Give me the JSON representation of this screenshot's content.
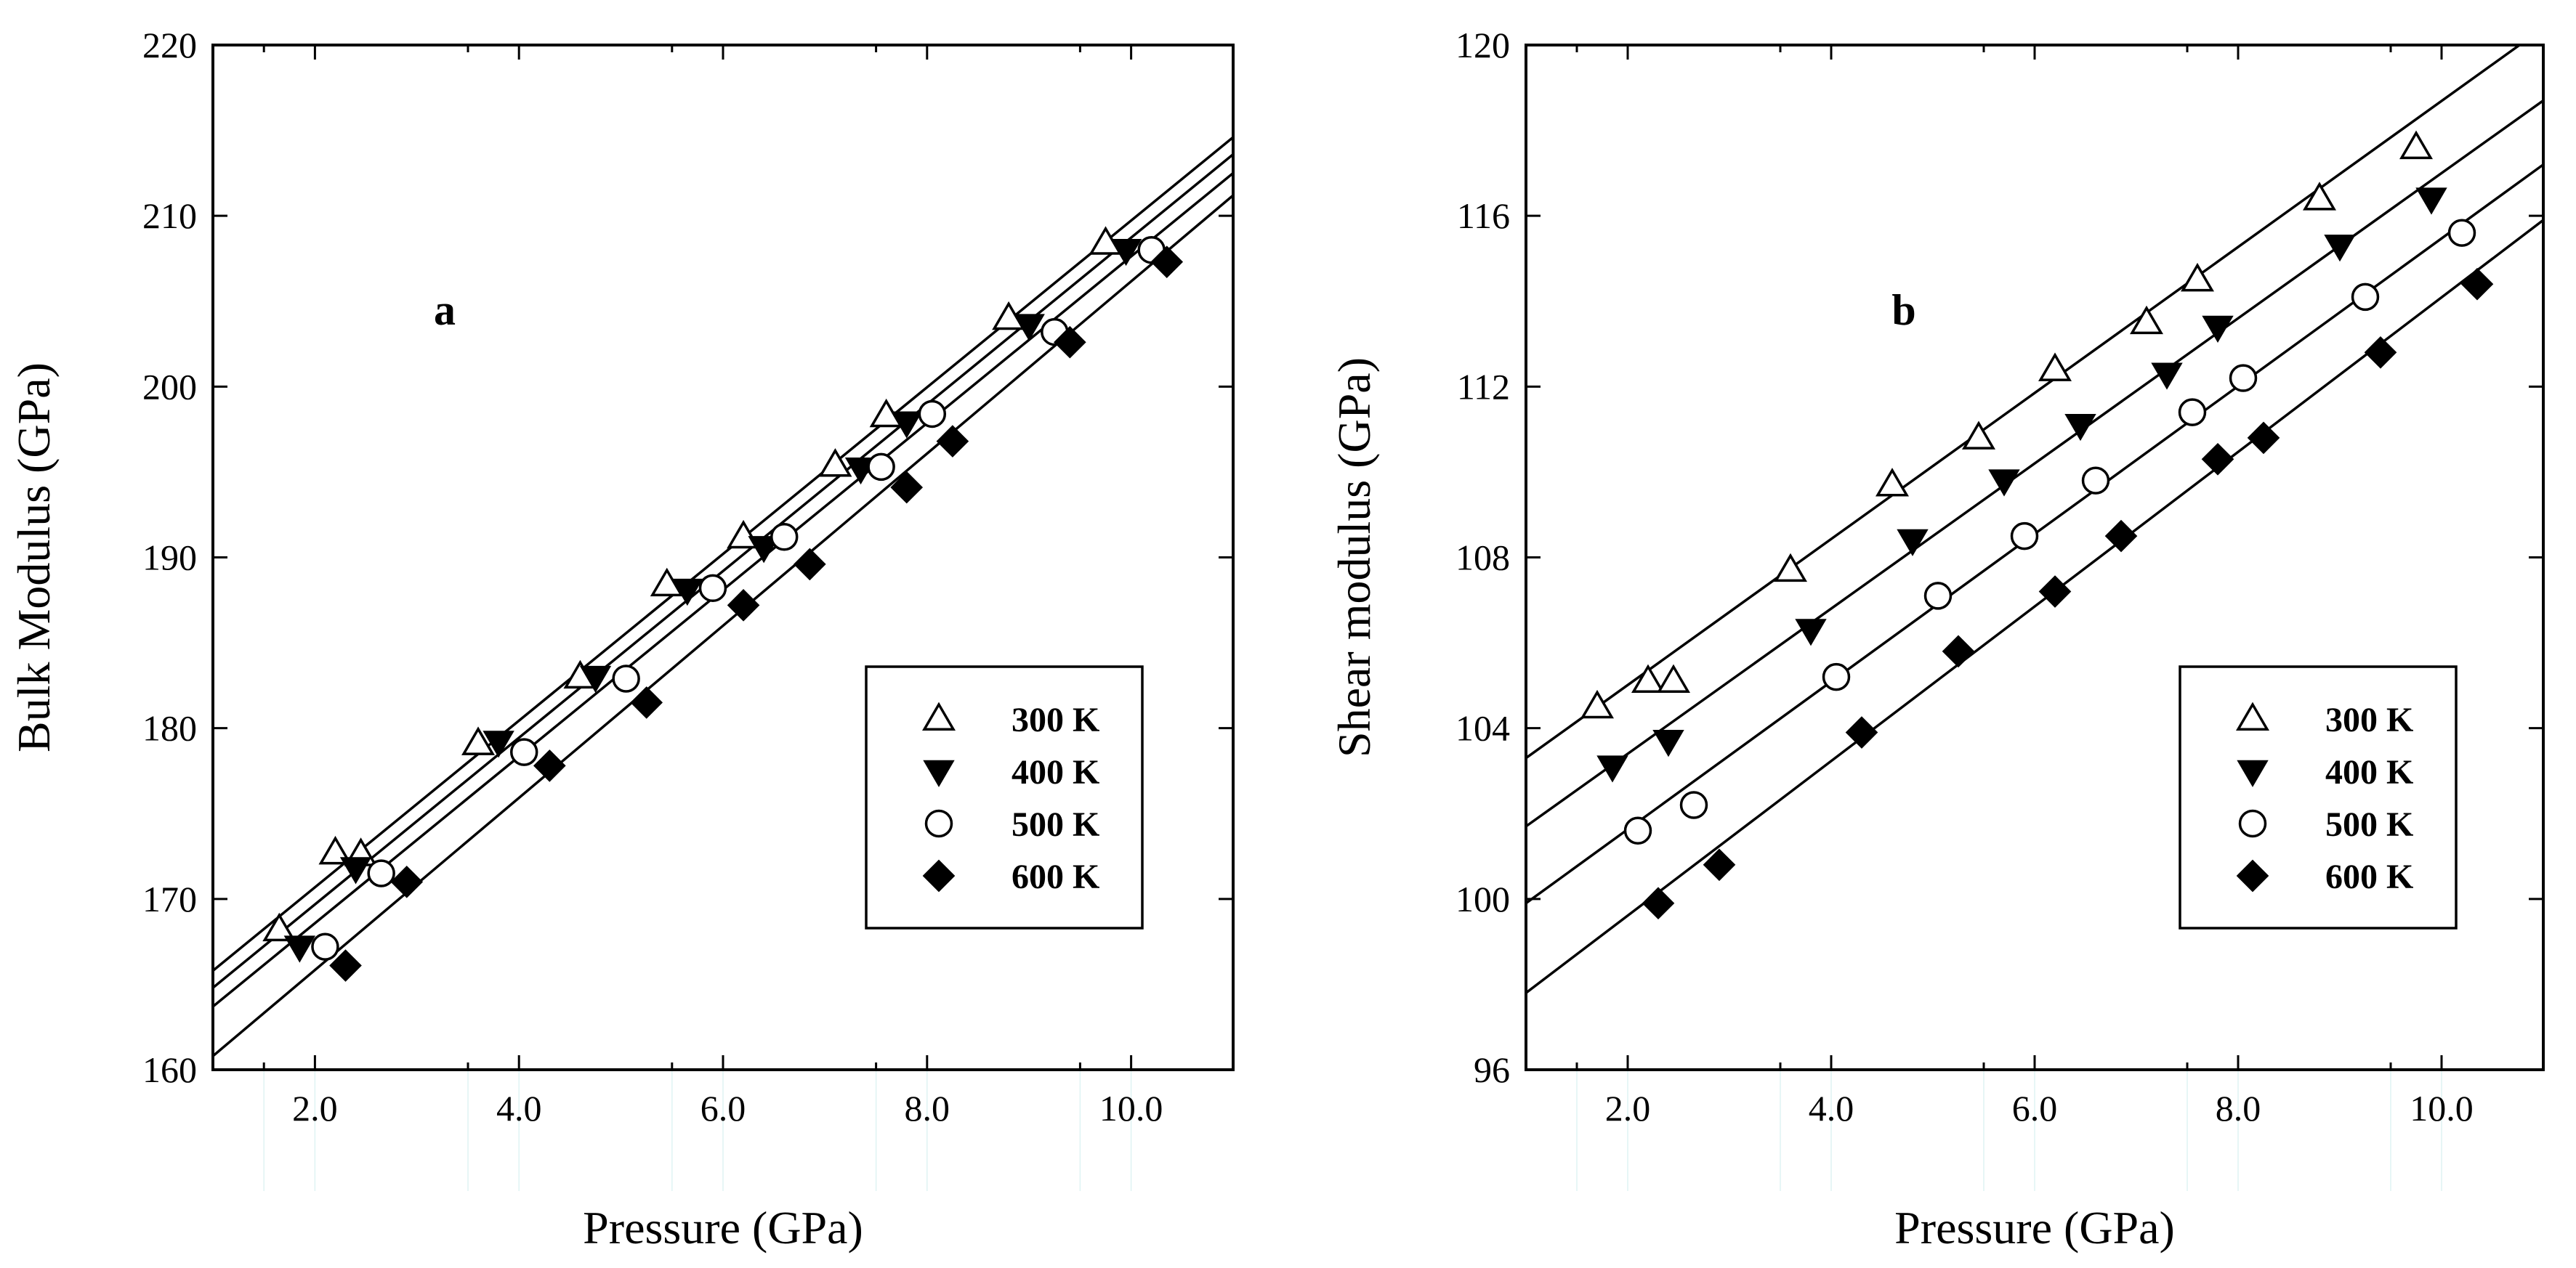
{
  "chart_data": [
    {
      "type": "scatter",
      "panel_label": "a",
      "xlabel": "Pressure (GPa)",
      "ylabel": "Bulk Modulus (GPa)",
      "xlim": [
        1.0,
        11.0
      ],
      "ylim": [
        160,
        220
      ],
      "xticks": [
        2.0,
        4.0,
        6.0,
        8.0,
        10.0
      ],
      "xtick_labels": [
        "2.0",
        "4.0",
        "6.0",
        "8.0",
        "10.0"
      ],
      "yticks": [
        160,
        170,
        180,
        190,
        200,
        210,
        220
      ],
      "ytick_labels": [
        "160",
        "170",
        "180",
        "190",
        "200",
        "210",
        "220"
      ],
      "legend_position": "center-right",
      "series": [
        {
          "name": "300 K",
          "marker": "triangle-up-open",
          "x": [
            1.65,
            2.2,
            2.45,
            3.6,
            4.6,
            5.45,
            6.2,
            7.1,
            7.6,
            8.8,
            9.75
          ],
          "y": [
            168.2,
            172.7,
            172.6,
            179.1,
            183.0,
            188.4,
            191.2,
            195.4,
            198.3,
            204.0,
            208.4
          ],
          "fit": [
            [
              1.0,
              165.8
            ],
            [
              11.0,
              214.6
            ]
          ]
        },
        {
          "name": "400 K",
          "marker": "triangle-down-filled",
          "x": [
            1.85,
            2.4,
            3.8,
            4.75,
            5.65,
            6.4,
            7.35,
            7.8,
            9.0,
            9.95
          ],
          "y": [
            167.2,
            171.8,
            179.2,
            183.0,
            188.1,
            190.6,
            195.2,
            197.9,
            203.6,
            208.0
          ],
          "fit": [
            [
              1.0,
              164.8
            ],
            [
              11.0,
              213.6
            ]
          ]
        },
        {
          "name": "500 K",
          "marker": "circle-open",
          "x": [
            2.1,
            2.65,
            4.05,
            5.05,
            5.9,
            6.6,
            7.55,
            8.05,
            9.25,
            10.2
          ],
          "y": [
            167.2,
            171.5,
            178.6,
            182.9,
            188.2,
            191.2,
            195.3,
            198.4,
            203.2,
            208.0
          ],
          "fit": [
            [
              1.0,
              163.7
            ],
            [
              11.0,
              212.5
            ]
          ]
        },
        {
          "name": "600 K",
          "marker": "diamond-filled",
          "x": [
            2.3,
            2.9,
            4.3,
            5.25,
            6.2,
            6.85,
            7.8,
            8.25,
            9.4,
            10.35
          ],
          "y": [
            166.1,
            171.0,
            177.8,
            181.5,
            187.2,
            189.6,
            194.1,
            196.8,
            202.6,
            207.3
          ],
          "fit": [
            [
              1.0,
              160.8
            ],
            [
              11.0,
              211.2
            ]
          ]
        }
      ]
    },
    {
      "type": "scatter",
      "panel_label": "b",
      "xlabel": "Pressure (GPa)",
      "ylabel": "Shear modulus (GPa)",
      "xlim": [
        1.0,
        11.0
      ],
      "ylim": [
        96,
        120
      ],
      "xticks": [
        2.0,
        4.0,
        6.0,
        8.0,
        10.0
      ],
      "xtick_labels": [
        "2.0",
        "4.0",
        "6.0",
        "8.0",
        "10.0"
      ],
      "yticks": [
        96,
        100,
        104,
        108,
        112,
        116,
        120
      ],
      "ytick_labels": [
        "96",
        "100",
        "104",
        "108",
        "112",
        "116",
        "120"
      ],
      "legend_position": "center-right",
      "series": [
        {
          "name": "300 K",
          "marker": "triangle-up-open",
          "x": [
            1.7,
            2.2,
            2.45,
            3.6,
            4.6,
            5.45,
            6.2,
            7.1,
            7.6,
            8.8,
            9.75
          ],
          "y": [
            104.5,
            105.1,
            105.1,
            107.7,
            109.7,
            110.8,
            112.4,
            113.5,
            114.5,
            116.4,
            117.6
          ],
          "fit": [
            [
              1.0,
              103.3
            ],
            [
              11.0,
              120.4
            ]
          ]
        },
        {
          "name": "400 K",
          "marker": "triangle-down-filled",
          "x": [
            1.85,
            2.4,
            3.8,
            4.8,
            5.7,
            6.45,
            7.3,
            7.8,
            9.0,
            9.9
          ],
          "y": [
            103.1,
            103.7,
            106.3,
            108.4,
            109.8,
            111.1,
            112.3,
            113.4,
            115.3,
            116.4
          ],
          "fit": [
            [
              1.0,
              101.7
            ],
            [
              11.0,
              118.7
            ]
          ]
        },
        {
          "name": "500 K",
          "marker": "circle-open",
          "x": [
            2.1,
            2.65,
            4.05,
            5.05,
            5.9,
            6.6,
            7.55,
            8.05,
            9.25,
            10.2
          ],
          "y": [
            101.6,
            102.2,
            105.2,
            107.1,
            108.5,
            109.8,
            111.4,
            112.2,
            114.1,
            115.6
          ],
          "fit": [
            [
              1.0,
              99.9
            ],
            [
              11.0,
              117.2
            ]
          ]
        },
        {
          "name": "600 K",
          "marker": "diamond-filled",
          "x": [
            2.3,
            2.9,
            4.3,
            5.25,
            6.2,
            6.85,
            7.8,
            8.25,
            9.4,
            10.35
          ],
          "y": [
            99.9,
            100.8,
            103.9,
            105.8,
            107.2,
            108.5,
            110.3,
            110.8,
            112.8,
            114.4
          ],
          "fit": [
            [
              1.0,
              97.8
            ],
            [
              11.0,
              115.9
            ]
          ]
        }
      ]
    }
  ]
}
